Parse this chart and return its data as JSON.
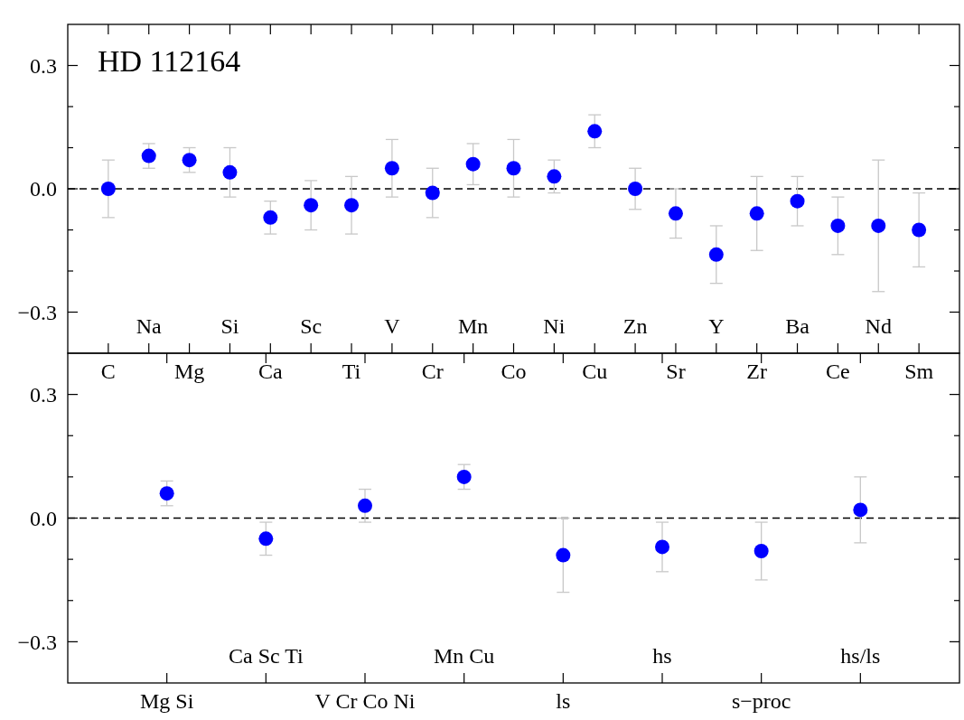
{
  "chart_data": [
    {
      "type": "scatter",
      "title": "HD 112164",
      "categories": [
        "C",
        "Na",
        "Mg",
        "Si",
        "Ca",
        "Sc",
        "Ti",
        "V",
        "Cr",
        "Mn",
        "Co",
        "Ni",
        "Cu",
        "Zn",
        "Sr",
        "Y",
        "Zr",
        "Ba",
        "Ce",
        "Nd",
        "Sm"
      ],
      "series": [
        {
          "color": "#0000ff",
          "values": [
            0.0,
            0.08,
            0.07,
            0.04,
            -0.07,
            -0.04,
            -0.04,
            0.05,
            -0.01,
            0.06,
            0.05,
            0.03,
            0.14,
            0.0,
            -0.06,
            -0.16,
            -0.06,
            -0.03,
            -0.09,
            -0.09,
            -0.1
          ],
          "errors": [
            0.07,
            0.03,
            0.03,
            0.06,
            0.04,
            0.06,
            0.07,
            0.07,
            0.06,
            0.05,
            0.07,
            0.04,
            0.04,
            0.05,
            0.06,
            0.07,
            0.09,
            0.06,
            0.07,
            0.16,
            0.09
          ]
        }
      ],
      "ylim": [
        -0.4,
        0.4
      ],
      "yticks": [
        {
          "value": -0.3,
          "label": "−0.3"
        },
        {
          "value": -0.2,
          "label": null
        },
        {
          "value": -0.1,
          "label": null
        },
        {
          "value": 0,
          "label": "0.0"
        },
        {
          "value": 0.1,
          "label": null
        },
        {
          "value": 0.2,
          "label": null
        },
        0.3
      ],
      "ref_lines": [
        {
          "axis": "y",
          "value": 0,
          "line_style": "dashed",
          "color": "#000000"
        }
      ],
      "marker": "circle",
      "grid": false
    },
    {
      "type": "scatter",
      "categories": [
        "Mg Si",
        "Ca Sc Ti",
        "V Cr Co Ni",
        "Mn Cu",
        "ls",
        "hs",
        "s−proc",
        "hs/ls"
      ],
      "series": [
        {
          "color": "#0000ff",
          "values": [
            0.06,
            -0.05,
            0.03,
            0.1,
            -0.09,
            -0.07,
            -0.08,
            0.02
          ],
          "errors": [
            0.03,
            0.04,
            0.04,
            0.03,
            0.09,
            0.06,
            0.07,
            0.08
          ]
        }
      ],
      "ylim": [
        -0.4,
        0.4
      ],
      "yticks": [
        {
          "value": -0.3,
          "label": "−0.3"
        },
        {
          "value": -0.2,
          "label": null
        },
        {
          "value": -0.1,
          "label": null
        },
        {
          "value": 0,
          "label": "0.0"
        },
        {
          "value": 0.1,
          "label": null
        },
        {
          "value": 0.2,
          "label": null
        },
        0.3
      ],
      "ref_lines": [
        {
          "axis": "y",
          "value": 0,
          "line_style": "dashed",
          "color": "#000000"
        }
      ],
      "marker": "circle",
      "grid": false
    }
  ]
}
